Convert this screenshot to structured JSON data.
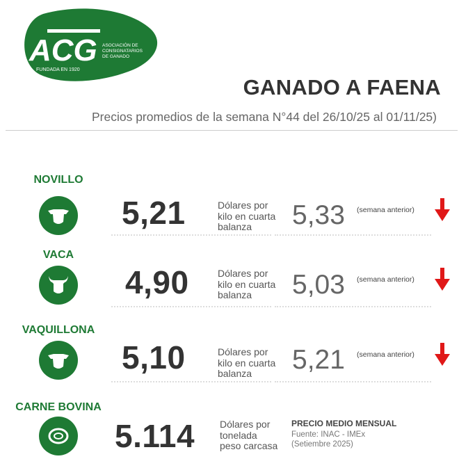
{
  "logo": {
    "text": "ACG",
    "tagline": "ASOCIACIÓN DE CONSIGNATARIOS DE GANADO",
    "founded": "FUNDADA EN 1920"
  },
  "header": {
    "title": "GANADO A FAENA",
    "subtitle": "Precios promedios de la semana N°44 del 26/10/25 al 01/11/25)"
  },
  "colors": {
    "brand_green": "#1e7a34",
    "down_arrow": "#e01818"
  },
  "rows": [
    {
      "label": "NOVILLO",
      "icon": "cattle-head-icon",
      "price": "5,21",
      "unit": [
        "Dólares por",
        "kilo en cuarta",
        "balanza"
      ],
      "previous": "5,33",
      "previous_label": "(semana anterior)",
      "trend": "down"
    },
    {
      "label": "VACA",
      "icon": "cow-head-icon",
      "price": "4,90",
      "unit": [
        "Dólares por",
        "kilo en cuarta",
        "balanza"
      ],
      "previous": "5,03",
      "previous_label": "(semana anterior)",
      "trend": "down"
    },
    {
      "label": "VAQUILLONA",
      "icon": "cattle-head-icon",
      "price": "5,10",
      "unit": [
        "Dólares por",
        "kilo en cuarta",
        "balanza"
      ],
      "previous": "5,21",
      "previous_label": "(semana anterior)",
      "trend": "down"
    }
  ],
  "beef": {
    "label": "CARNE BOVINA",
    "icon": "meat-cut-icon",
    "price": "5.114",
    "unit": [
      "Dólares por",
      "tonelada",
      "peso carcasa"
    ],
    "note_title": "PRECIO MEDIO MENSUAL",
    "source": "Fuente: INAC - IMEx",
    "period": "(Setiembre 2025)"
  }
}
